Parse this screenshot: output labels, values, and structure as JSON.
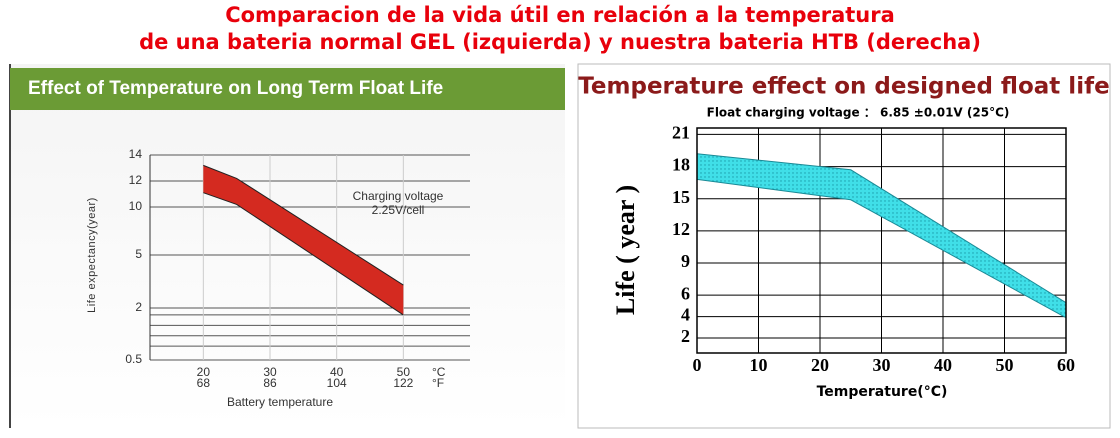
{
  "page_title": [
    "Comparacion de la vida útil en relación a la temperatura",
    "de una bateria normal GEL (izquierda) y nuestra bateria HTB (derecha)"
  ],
  "chart_data": [
    {
      "type": "band",
      "title": "Effect of Temperature on Long Term Float Life",
      "x_label": "Battery temperature",
      "y_label": "Life expectancy(year)",
      "x": [
        20,
        25,
        50
      ],
      "series": [
        {
          "color": "#d42a20",
          "values": [
            13.2,
            12.2,
            3.3
          ]
        },
        {
          "color": "#d42a20",
          "values": [
            11.1,
            10.2,
            1.8
          ]
        }
      ],
      "xlim": [
        12,
        60
      ],
      "xticks": [
        20,
        30,
        40,
        50
      ],
      "xticks_f": [
        "68",
        "86",
        "104",
        "122"
      ],
      "x_units": [
        "°C",
        "°F"
      ],
      "ylim": [
        0.5,
        14
      ],
      "yticks": [
        0.5,
        2,
        5,
        10,
        12,
        14
      ],
      "minor_grid": [
        1.8,
        1.5,
        1.2,
        0.9
      ],
      "annotation": [
        "Charging voltage",
        "2.25V/cell"
      ],
      "grid": true
    },
    {
      "type": "band",
      "title": "Temperature effect on designed float life",
      "subtitle": "Float charging voltage ： 6.85 ±0.01V (25°C)",
      "x_label": "Temperature(°C)",
      "y_label": "Life ( year )",
      "x": [
        0,
        25,
        60
      ],
      "series": [
        {
          "color": "#40dfe8",
          "values": [
            19.2,
            17.7,
            5.3
          ]
        },
        {
          "color": "#40dfe8",
          "values": [
            16.8,
            14.9,
            3.9
          ]
        }
      ],
      "xlim": [
        0,
        60
      ],
      "xticks": [
        0,
        10,
        20,
        30,
        40,
        50,
        60
      ],
      "ylim": [
        0.6,
        21.6
      ],
      "yticks": [
        2,
        4,
        6,
        9,
        12,
        15,
        18,
        21
      ],
      "grid": true
    }
  ]
}
